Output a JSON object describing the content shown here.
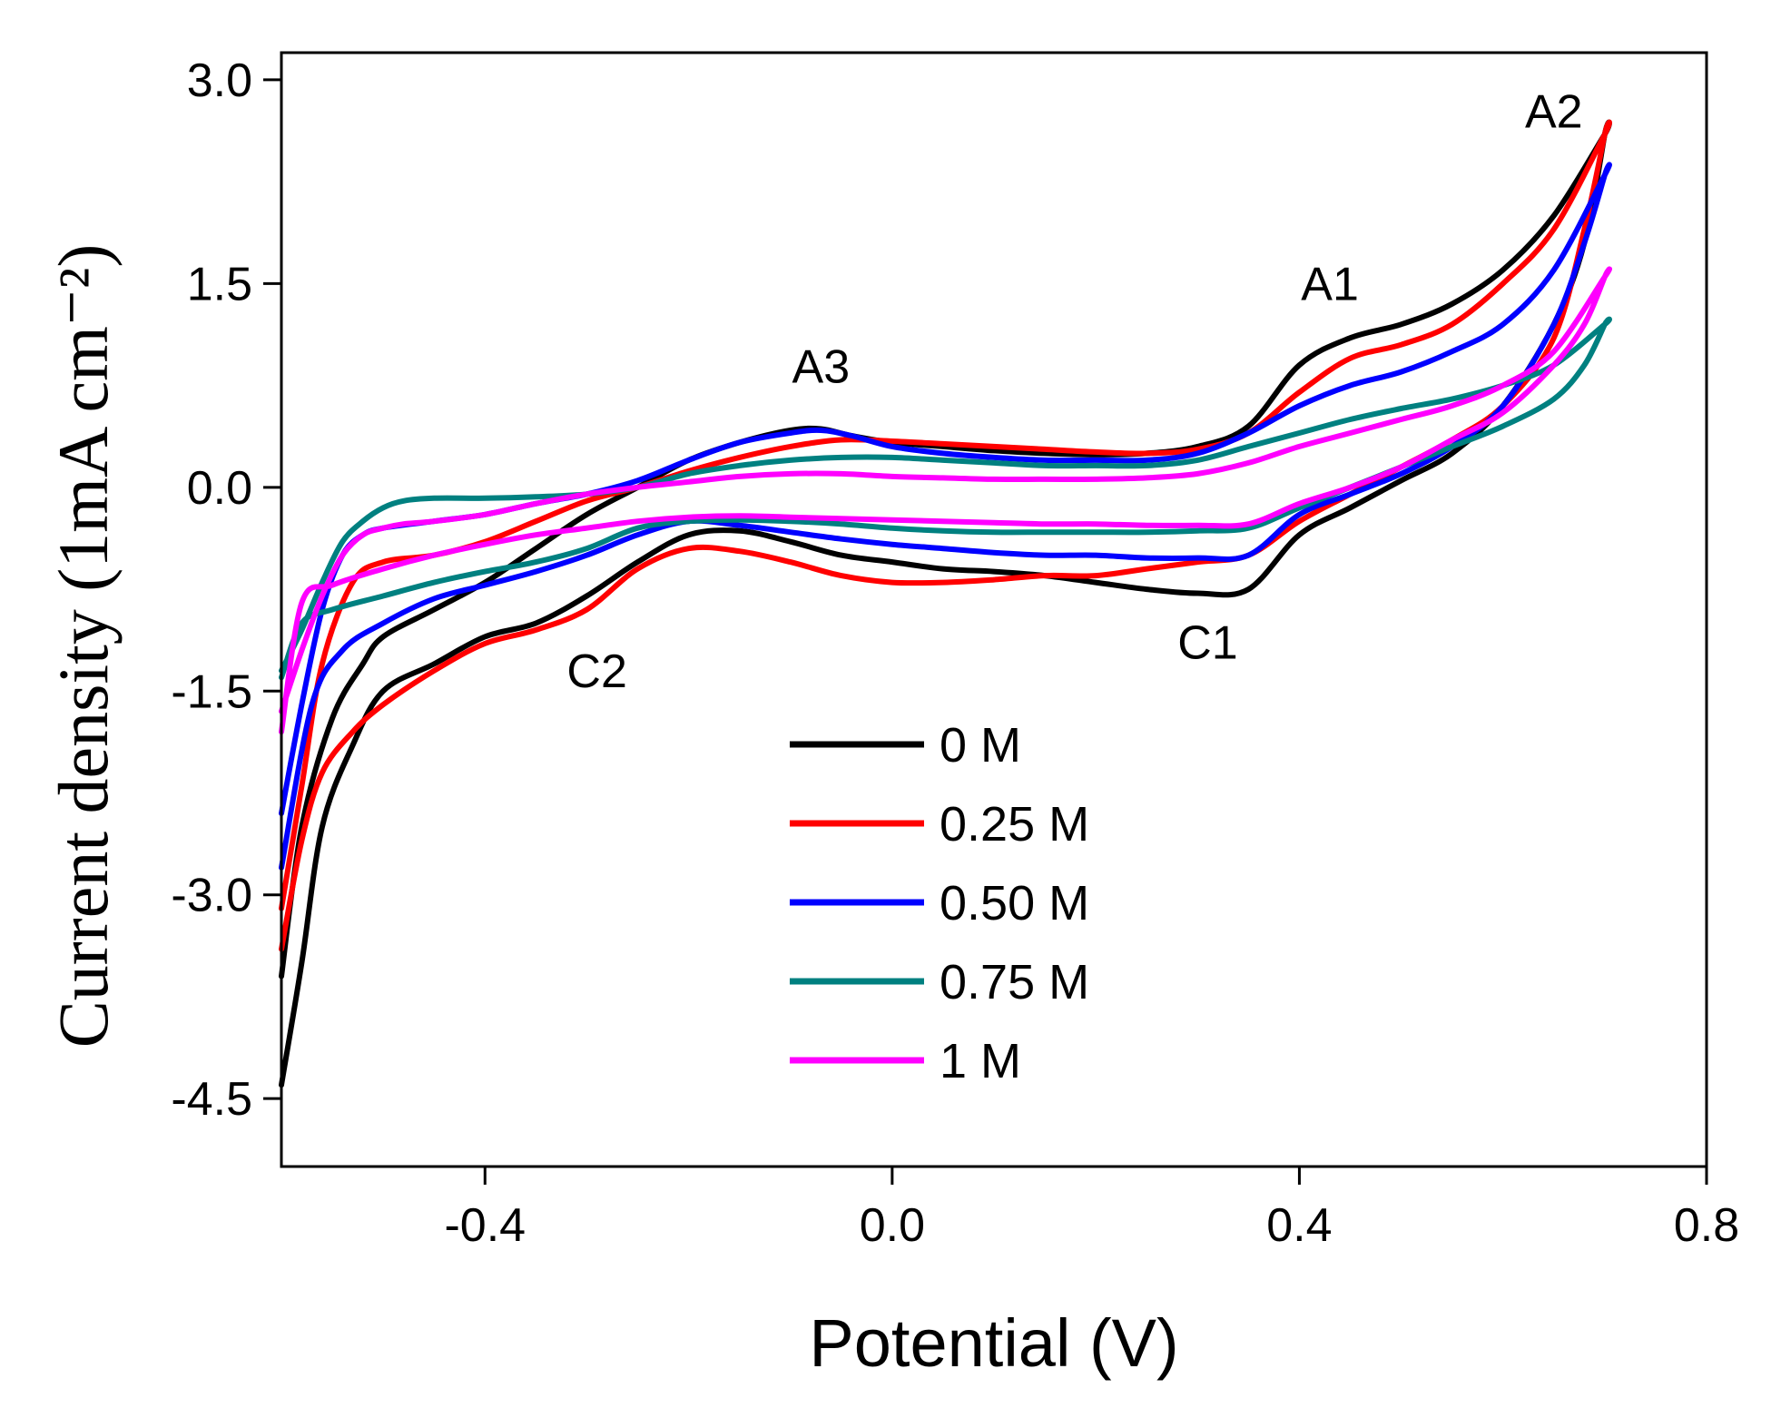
{
  "chart_data": {
    "type": "line",
    "title": "",
    "xlabel": "Potential (V)",
    "ylabel": "Current density (1mA cm⁻²)",
    "xlim": [
      -0.6,
      0.8
    ],
    "ylim": [
      -5.0,
      3.2
    ],
    "x_ticks": [
      -0.4,
      0.0,
      0.4,
      0.8
    ],
    "x_tick_labels": [
      "-0.4",
      "0.0",
      "0.4",
      "0.8"
    ],
    "y_ticks": [
      3.0,
      1.5,
      0.0,
      -1.5,
      -3.0,
      -4.5
    ],
    "y_tick_labels": [
      "3.0",
      "1.5",
      "0.0",
      "-1.5",
      "-3.0",
      "-4.5"
    ],
    "grid": false,
    "legend_position": "bottom-center",
    "annotations": [
      {
        "text": "A1",
        "x": 0.43,
        "y": 1.38
      },
      {
        "text": "A2",
        "x": 0.65,
        "y": 2.65
      },
      {
        "text": "A3",
        "x": -0.07,
        "y": 0.77
      },
      {
        "text": "C1",
        "x": 0.31,
        "y": -1.26
      },
      {
        "text": "C2",
        "x": -0.29,
        "y": -1.47
      }
    ],
    "series": [
      {
        "name": "0 M",
        "color": "#000000",
        "x": [
          -0.6,
          -0.58,
          -0.55,
          -0.52,
          -0.5,
          -0.45,
          -0.4,
          -0.35,
          -0.3,
          -0.25,
          -0.2,
          -0.15,
          -0.1,
          -0.07,
          -0.04,
          0.0,
          0.05,
          0.1,
          0.15,
          0.2,
          0.25,
          0.3,
          0.35,
          0.4,
          0.45,
          0.5,
          0.55,
          0.6,
          0.65,
          0.7,
          0.7,
          0.68,
          0.65,
          0.6,
          0.55,
          0.5,
          0.45,
          0.4,
          0.35,
          0.3,
          0.25,
          0.2,
          0.15,
          0.1,
          0.05,
          0.0,
          -0.05,
          -0.1,
          -0.15,
          -0.2,
          -0.25,
          -0.3,
          -0.35,
          -0.4,
          -0.45,
          -0.5,
          -0.53,
          -0.56,
          -0.58,
          -0.6
        ],
        "y": [
          -3.6,
          -2.5,
          -1.7,
          -1.3,
          -1.1,
          -0.9,
          -0.7,
          -0.45,
          -0.2,
          0.0,
          0.2,
          0.33,
          0.42,
          0.43,
          0.38,
          0.33,
          0.3,
          0.27,
          0.25,
          0.24,
          0.25,
          0.3,
          0.45,
          0.9,
          1.1,
          1.2,
          1.35,
          1.6,
          2.0,
          2.6,
          2.6,
          1.8,
          1.2,
          0.6,
          0.25,
          0.05,
          -0.15,
          -0.35,
          -0.75,
          -0.78,
          -0.75,
          -0.7,
          -0.65,
          -0.62,
          -0.6,
          -0.55,
          -0.5,
          -0.4,
          -0.32,
          -0.35,
          -0.55,
          -0.8,
          -1.0,
          -1.1,
          -1.3,
          -1.5,
          -1.9,
          -2.5,
          -3.5,
          -4.4
        ]
      },
      {
        "name": "0.25 M",
        "color": "#ff0000",
        "x": [
          -0.6,
          -0.58,
          -0.56,
          -0.53,
          -0.5,
          -0.45,
          -0.4,
          -0.35,
          -0.3,
          -0.25,
          -0.2,
          -0.15,
          -0.1,
          -0.05,
          0.0,
          0.05,
          0.1,
          0.15,
          0.2,
          0.25,
          0.3,
          0.35,
          0.4,
          0.45,
          0.5,
          0.55,
          0.6,
          0.65,
          0.7,
          0.7,
          0.68,
          0.65,
          0.6,
          0.55,
          0.5,
          0.45,
          0.4,
          0.35,
          0.3,
          0.25,
          0.2,
          0.15,
          0.1,
          0.05,
          0.0,
          -0.05,
          -0.1,
          -0.15,
          -0.2,
          -0.25,
          -0.3,
          -0.35,
          -0.4,
          -0.45,
          -0.5,
          -0.53,
          -0.56,
          -0.58,
          -0.6
        ],
        "y": [
          -3.1,
          -2.2,
          -1.3,
          -0.7,
          -0.55,
          -0.5,
          -0.4,
          -0.25,
          -0.1,
          0.0,
          0.12,
          0.22,
          0.3,
          0.35,
          0.34,
          0.32,
          0.3,
          0.28,
          0.26,
          0.25,
          0.28,
          0.4,
          0.7,
          0.95,
          1.05,
          1.2,
          1.5,
          1.9,
          2.6,
          2.6,
          1.9,
          1.1,
          0.6,
          0.35,
          0.15,
          -0.05,
          -0.25,
          -0.5,
          -0.55,
          -0.6,
          -0.65,
          -0.65,
          -0.68,
          -0.7,
          -0.7,
          -0.65,
          -0.55,
          -0.47,
          -0.45,
          -0.6,
          -0.9,
          -1.05,
          -1.15,
          -1.35,
          -1.6,
          -1.8,
          -2.1,
          -2.6,
          -3.4
        ]
      },
      {
        "name": "0.50 M",
        "color": "#0000ff",
        "x": [
          -0.6,
          -0.58,
          -0.56,
          -0.54,
          -0.52,
          -0.5,
          -0.45,
          -0.4,
          -0.35,
          -0.3,
          -0.25,
          -0.2,
          -0.15,
          -0.1,
          -0.07,
          -0.04,
          0.0,
          0.05,
          0.1,
          0.15,
          0.2,
          0.25,
          0.3,
          0.35,
          0.4,
          0.45,
          0.5,
          0.55,
          0.6,
          0.65,
          0.7,
          0.7,
          0.68,
          0.65,
          0.6,
          0.55,
          0.5,
          0.45,
          0.4,
          0.35,
          0.3,
          0.25,
          0.2,
          0.15,
          0.1,
          0.05,
          0.0,
          -0.05,
          -0.1,
          -0.15,
          -0.2,
          -0.25,
          -0.3,
          -0.35,
          -0.4,
          -0.45,
          -0.5,
          -0.54,
          -0.57,
          -0.6
        ],
        "y": [
          -2.4,
          -1.6,
          -0.9,
          -0.5,
          -0.35,
          -0.3,
          -0.25,
          -0.2,
          -0.12,
          -0.05,
          0.05,
          0.2,
          0.33,
          0.4,
          0.42,
          0.38,
          0.3,
          0.25,
          0.22,
          0.2,
          0.2,
          0.2,
          0.25,
          0.4,
          0.6,
          0.75,
          0.85,
          1.0,
          1.2,
          1.6,
          2.3,
          2.3,
          1.8,
          1.2,
          0.6,
          0.3,
          0.1,
          -0.05,
          -0.2,
          -0.5,
          -0.52,
          -0.52,
          -0.5,
          -0.5,
          -0.48,
          -0.45,
          -0.42,
          -0.38,
          -0.33,
          -0.28,
          -0.25,
          -0.35,
          -0.5,
          -0.62,
          -0.72,
          -0.82,
          -1.0,
          -1.2,
          -1.6,
          -2.8
        ]
      },
      {
        "name": "0.75 M",
        "color": "#008080",
        "x": [
          -0.6,
          -0.58,
          -0.56,
          -0.54,
          -0.52,
          -0.5,
          -0.48,
          -0.45,
          -0.4,
          -0.35,
          -0.3,
          -0.25,
          -0.2,
          -0.15,
          -0.1,
          -0.05,
          0.0,
          0.05,
          0.1,
          0.15,
          0.2,
          0.25,
          0.3,
          0.35,
          0.4,
          0.45,
          0.5,
          0.55,
          0.6,
          0.65,
          0.7,
          0.7,
          0.68,
          0.65,
          0.6,
          0.55,
          0.5,
          0.45,
          0.4,
          0.35,
          0.3,
          0.25,
          0.2,
          0.15,
          0.1,
          0.05,
          0.0,
          -0.05,
          -0.1,
          -0.15,
          -0.2,
          -0.25,
          -0.3,
          -0.35,
          -0.4,
          -0.45,
          -0.5,
          -0.55,
          -0.58,
          -0.6
        ],
        "y": [
          -1.35,
          -1.05,
          -0.7,
          -0.4,
          -0.25,
          -0.15,
          -0.1,
          -0.08,
          -0.08,
          -0.07,
          -0.05,
          0.0,
          0.1,
          0.16,
          0.2,
          0.22,
          0.22,
          0.2,
          0.18,
          0.16,
          0.16,
          0.16,
          0.2,
          0.3,
          0.4,
          0.5,
          0.58,
          0.65,
          0.75,
          0.9,
          1.2,
          1.2,
          0.9,
          0.65,
          0.45,
          0.3,
          0.15,
          0.0,
          -0.15,
          -0.3,
          -0.32,
          -0.33,
          -0.33,
          -0.33,
          -0.33,
          -0.32,
          -0.3,
          -0.27,
          -0.25,
          -0.24,
          -0.25,
          -0.3,
          -0.45,
          -0.55,
          -0.62,
          -0.7,
          -0.8,
          -0.9,
          -1.0,
          -1.4
        ]
      },
      {
        "name": "1 M",
        "color": "#ff00ff",
        "x": [
          -0.6,
          -0.58,
          -0.56,
          -0.54,
          -0.52,
          -0.5,
          -0.48,
          -0.45,
          -0.4,
          -0.35,
          -0.3,
          -0.25,
          -0.2,
          -0.15,
          -0.1,
          -0.05,
          0.0,
          0.05,
          0.1,
          0.15,
          0.2,
          0.25,
          0.3,
          0.35,
          0.4,
          0.45,
          0.5,
          0.55,
          0.6,
          0.65,
          0.7,
          0.7,
          0.68,
          0.65,
          0.6,
          0.55,
          0.5,
          0.45,
          0.4,
          0.35,
          0.3,
          0.25,
          0.2,
          0.15,
          0.1,
          0.05,
          0.0,
          -0.05,
          -0.1,
          -0.15,
          -0.2,
          -0.25,
          -0.3,
          -0.35,
          -0.4,
          -0.45,
          -0.5,
          -0.55,
          -0.58,
          -0.6
        ],
        "y": [
          -1.65,
          -1.2,
          -0.8,
          -0.5,
          -0.35,
          -0.3,
          -0.27,
          -0.25,
          -0.2,
          -0.12,
          -0.05,
          0.0,
          0.04,
          0.08,
          0.1,
          0.1,
          0.08,
          0.07,
          0.06,
          0.06,
          0.06,
          0.07,
          0.1,
          0.18,
          0.3,
          0.4,
          0.5,
          0.6,
          0.75,
          1.0,
          1.55,
          1.55,
          1.2,
          0.9,
          0.55,
          0.35,
          0.15,
          0.0,
          -0.12,
          -0.27,
          -0.28,
          -0.28,
          -0.27,
          -0.27,
          -0.26,
          -0.25,
          -0.24,
          -0.23,
          -0.22,
          -0.21,
          -0.22,
          -0.25,
          -0.3,
          -0.35,
          -0.42,
          -0.5,
          -0.6,
          -0.72,
          -0.85,
          -1.8
        ]
      }
    ]
  }
}
